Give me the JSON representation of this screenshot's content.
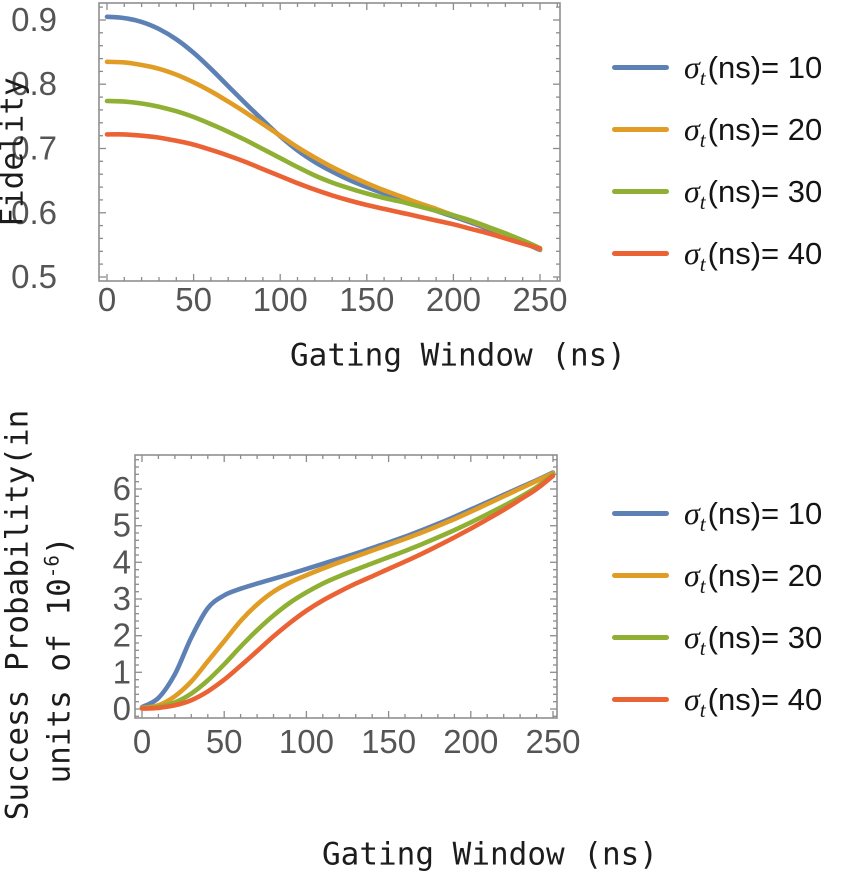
{
  "figure": {
    "background": "#ffffff",
    "frame_color": "#8f8f8f",
    "tick_color": "#8c8c8c",
    "tick_label_color": "#555555",
    "axis_label_color": "#1c1c1c"
  },
  "chart_data": [
    {
      "type": "line",
      "id": "fidelity-vs-gating-window",
      "title": "",
      "xlabel": "Gating Window (ns)",
      "ylabel": "Fidelity",
      "xlim": [
        0,
        250
      ],
      "ylim": [
        0.5,
        0.9
      ],
      "xticks": [
        0,
        50,
        100,
        150,
        200,
        250
      ],
      "yticks": [
        0.5,
        0.6,
        0.7,
        0.8,
        0.9
      ],
      "xminor": 10,
      "yminor": 0.02,
      "grid": false,
      "legend_position": "right",
      "x": [
        0,
        10,
        20,
        30,
        40,
        50,
        60,
        70,
        80,
        90,
        100,
        110,
        120,
        130,
        140,
        150,
        160,
        170,
        180,
        190,
        200,
        210,
        220,
        230,
        240,
        250
      ],
      "series": [
        {
          "key": "sigma-t-10",
          "name": "σt(ns)= 10",
          "sigma": "σ",
          "sub": "t",
          "rest": "(ns)= 10",
          "color": "#5e81b5",
          "values": [
            0.905,
            0.903,
            0.897,
            0.886,
            0.87,
            0.849,
            0.824,
            0.797,
            0.77,
            0.744,
            0.719,
            0.697,
            0.679,
            0.664,
            0.651,
            0.64,
            0.63,
            0.621,
            0.612,
            0.603,
            0.594,
            0.585,
            0.575,
            0.565,
            0.554,
            0.542
          ]
        },
        {
          "key": "sigma-t-20",
          "name": "σt(ns)= 20",
          "sigma": "σ",
          "sub": "t",
          "rest": "(ns)= 20",
          "color": "#e09c24",
          "values": [
            0.835,
            0.834,
            0.83,
            0.824,
            0.815,
            0.803,
            0.789,
            0.773,
            0.756,
            0.738,
            0.72,
            0.702,
            0.686,
            0.671,
            0.658,
            0.646,
            0.635,
            0.625,
            0.615,
            0.606,
            0.596,
            0.587,
            0.577,
            0.567,
            0.556,
            0.543
          ]
        },
        {
          "key": "sigma-t-30",
          "name": "σt(ns)= 30",
          "sigma": "σ",
          "sub": "t",
          "rest": "(ns)= 30",
          "color": "#8fb032",
          "values": [
            0.774,
            0.773,
            0.77,
            0.765,
            0.758,
            0.749,
            0.738,
            0.726,
            0.713,
            0.699,
            0.685,
            0.671,
            0.658,
            0.647,
            0.638,
            0.63,
            0.623,
            0.617,
            0.61,
            0.603,
            0.596,
            0.588,
            0.578,
            0.568,
            0.557,
            0.545
          ]
        },
        {
          "key": "sigma-t-40",
          "name": "σt(ns)= 40",
          "sigma": "σ",
          "sub": "t",
          "rest": "(ns)= 40",
          "color": "#eb6235",
          "values": [
            0.722,
            0.722,
            0.72,
            0.717,
            0.712,
            0.706,
            0.698,
            0.689,
            0.679,
            0.668,
            0.657,
            0.646,
            0.636,
            0.627,
            0.619,
            0.612,
            0.606,
            0.6,
            0.594,
            0.588,
            0.582,
            0.575,
            0.568,
            0.56,
            0.552,
            0.544
          ]
        }
      ]
    },
    {
      "type": "line",
      "id": "success-probability-vs-gating-window",
      "title": "",
      "xlabel": "Gating Window (ns)",
      "ylabel": "Success Probability(in units of 10^-6)",
      "ylabel_line1": "Success Probability(in",
      "ylabel_line2_pre": "units of 10",
      "ylabel_line2_sup": "-6",
      "ylabel_line2_post": ")",
      "xlim": [
        0,
        250
      ],
      "ylim": [
        0,
        6.5
      ],
      "xticks": [
        0,
        50,
        100,
        150,
        200,
        250
      ],
      "yticks": [
        0,
        1,
        2,
        3,
        4,
        5,
        6
      ],
      "xminor": 10,
      "yminor": 0.2,
      "grid": false,
      "legend_position": "right",
      "x": [
        0,
        10,
        20,
        30,
        40,
        50,
        60,
        70,
        80,
        90,
        100,
        110,
        120,
        130,
        140,
        150,
        160,
        170,
        180,
        190,
        200,
        210,
        220,
        230,
        240,
        250
      ],
      "series": [
        {
          "key": "sigma-t-10",
          "name": "σt(ns)= 10",
          "sigma": "σ",
          "sub": "t",
          "rest": "(ns)= 10",
          "color": "#5e81b5",
          "values": [
            0.05,
            0.3,
            0.95,
            1.95,
            2.75,
            3.1,
            3.28,
            3.42,
            3.55,
            3.68,
            3.82,
            3.96,
            4.1,
            4.24,
            4.39,
            4.54,
            4.7,
            4.87,
            5.05,
            5.24,
            5.44,
            5.64,
            5.84,
            6.04,
            6.24,
            6.45
          ]
        },
        {
          "key": "sigma-t-20",
          "name": "σt(ns)= 20",
          "sigma": "σ",
          "sub": "t",
          "rest": "(ns)= 20",
          "color": "#e09c24",
          "values": [
            0.03,
            0.1,
            0.35,
            0.75,
            1.3,
            1.85,
            2.4,
            2.85,
            3.2,
            3.45,
            3.65,
            3.83,
            4.0,
            4.16,
            4.32,
            4.48,
            4.64,
            4.81,
            4.99,
            5.18,
            5.38,
            5.59,
            5.8,
            6.01,
            6.22,
            6.43
          ]
        },
        {
          "key": "sigma-t-30",
          "name": "σt(ns)= 30",
          "sigma": "σ",
          "sub": "t",
          "rest": "(ns)= 30",
          "color": "#8fb032",
          "values": [
            0.02,
            0.06,
            0.18,
            0.42,
            0.78,
            1.22,
            1.7,
            2.15,
            2.55,
            2.9,
            3.18,
            3.42,
            3.62,
            3.8,
            3.97,
            4.14,
            4.31,
            4.49,
            4.68,
            4.88,
            5.09,
            5.31,
            5.54,
            5.78,
            6.05,
            6.4
          ]
        },
        {
          "key": "sigma-t-40",
          "name": "σt(ns)= 40",
          "sigma": "σ",
          "sub": "t",
          "rest": "(ns)= 40",
          "color": "#eb6235",
          "values": [
            0.01,
            0.03,
            0.1,
            0.24,
            0.48,
            0.8,
            1.18,
            1.58,
            1.98,
            2.35,
            2.68,
            2.96,
            3.2,
            3.42,
            3.62,
            3.82,
            4.02,
            4.23,
            4.45,
            4.68,
            4.92,
            5.17,
            5.43,
            5.71,
            6.0,
            6.36
          ]
        }
      ]
    }
  ]
}
